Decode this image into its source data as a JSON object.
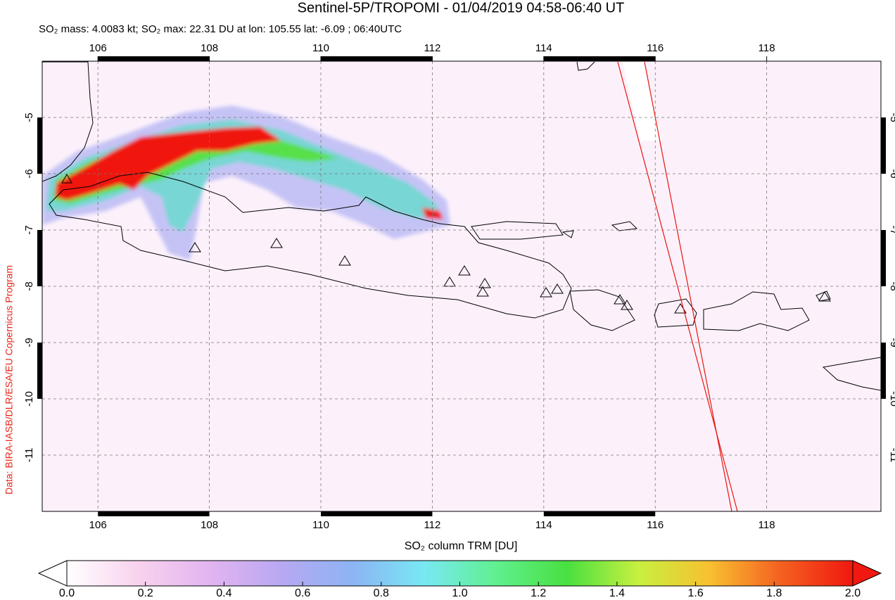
{
  "chart_data": {
    "type": "map",
    "title": "Sentinel-5P/TROPOMI - 01/04/2019 04:58-06:40 UT",
    "subtitle": "SO₂ mass: 4.0083 kt; SO₂ max: 22.31 DU at lon: 105.55 lat: -6.09 ; 06:40UTC",
    "credit": "Data: BIRA-IASB/DLR/ESA/EU Copernicus Program",
    "xlim": [
      105,
      120.05
    ],
    "ylim": [
      -12,
      -4
    ],
    "xticks": [
      106,
      108,
      110,
      112,
      114,
      116,
      118
    ],
    "yticks": [
      -5,
      -6,
      -7,
      -8,
      -9,
      -10,
      -11
    ],
    "grid": true,
    "colorbar": {
      "label": "SO₂ column TRM [DU]",
      "lim": [
        0,
        2
      ],
      "ticks": [
        {
          "value": 0,
          "label": "0.0"
        },
        {
          "value": 0.2,
          "label": "0.2"
        },
        {
          "value": 0.4,
          "label": "0.4"
        },
        {
          "value": 0.6,
          "label": "0.6"
        },
        {
          "value": 0.8,
          "label": "0.8"
        },
        {
          "value": 1,
          "label": "1.0"
        },
        {
          "value": 1.2,
          "label": "1.2"
        },
        {
          "value": 1.4,
          "label": "1.4"
        },
        {
          "value": 1.6,
          "label": "1.6"
        },
        {
          "value": 1.8,
          "label": "1.8"
        },
        {
          "value": 2,
          "label": "2.0"
        }
      ],
      "colors": [
        "#ffffff",
        "#f8d2ee",
        "#e2b4f0",
        "#b8a8f2",
        "#8cb4f4",
        "#78e8f4",
        "#60f090",
        "#48e040",
        "#c8f040",
        "#f8c030",
        "#f46020",
        "#f01810"
      ]
    }
  }
}
